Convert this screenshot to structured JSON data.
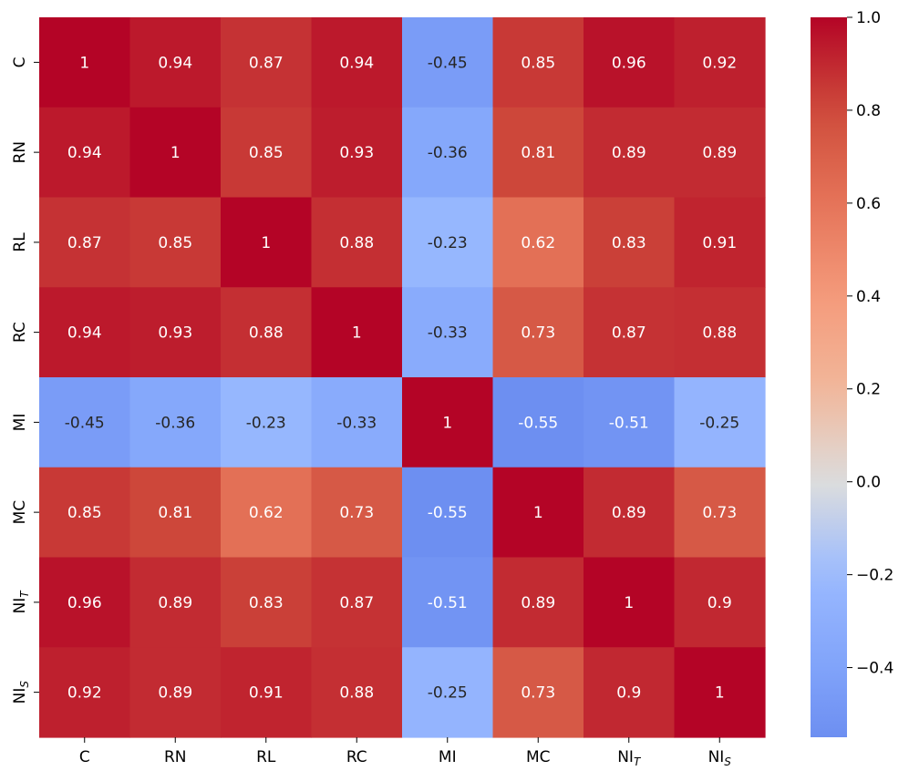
{
  "chart_data": {
    "type": "heatmap",
    "title": "",
    "xlabel": "",
    "ylabel": "",
    "row_labels": [
      {
        "base": "C",
        "sub": ""
      },
      {
        "base": "RN",
        "sub": ""
      },
      {
        "base": "RL",
        "sub": ""
      },
      {
        "base": "RC",
        "sub": ""
      },
      {
        "base": "MI",
        "sub": ""
      },
      {
        "base": "MC",
        "sub": ""
      },
      {
        "base": "NI",
        "sub": "T"
      },
      {
        "base": "NI",
        "sub": "S"
      }
    ],
    "col_labels": [
      {
        "base": "C",
        "sub": ""
      },
      {
        "base": "RN",
        "sub": ""
      },
      {
        "base": "RL",
        "sub": ""
      },
      {
        "base": "RC",
        "sub": ""
      },
      {
        "base": "MI",
        "sub": ""
      },
      {
        "base": "MC",
        "sub": ""
      },
      {
        "base": "NI",
        "sub": "T"
      },
      {
        "base": "NI",
        "sub": "S"
      }
    ],
    "values": [
      [
        1,
        0.94,
        0.87,
        0.94,
        -0.45,
        0.85,
        0.96,
        0.92
      ],
      [
        0.94,
        1,
        0.85,
        0.93,
        -0.36,
        0.81,
        0.89,
        0.89
      ],
      [
        0.87,
        0.85,
        1,
        0.88,
        -0.23,
        0.62,
        0.83,
        0.91
      ],
      [
        0.94,
        0.93,
        0.88,
        1,
        -0.33,
        0.73,
        0.87,
        0.88
      ],
      [
        -0.45,
        -0.36,
        -0.23,
        -0.33,
        1,
        -0.55,
        -0.51,
        -0.25
      ],
      [
        0.85,
        0.81,
        0.62,
        0.73,
        -0.55,
        1,
        0.89,
        0.73
      ],
      [
        0.96,
        0.89,
        0.83,
        0.87,
        -0.51,
        0.89,
        1,
        0.9
      ],
      [
        0.92,
        0.89,
        0.91,
        0.88,
        -0.25,
        0.73,
        0.9,
        1
      ]
    ],
    "cell_labels": [
      [
        "1",
        "0.94",
        "0.87",
        "0.94",
        "-0.45",
        "0.85",
        "0.96",
        "0.92"
      ],
      [
        "0.94",
        "1",
        "0.85",
        "0.93",
        "-0.36",
        "0.81",
        "0.89",
        "0.89"
      ],
      [
        "0.87",
        "0.85",
        "1",
        "0.88",
        "-0.23",
        "0.62",
        "0.83",
        "0.91"
      ],
      [
        "0.94",
        "0.93",
        "0.88",
        "1",
        "-0.33",
        "0.73",
        "0.87",
        "0.88"
      ],
      [
        "-0.45",
        "-0.36",
        "-0.23",
        "-0.33",
        "1",
        "-0.55",
        "-0.51",
        "-0.25"
      ],
      [
        "0.85",
        "0.81",
        "0.62",
        "0.73",
        "-0.55",
        "1",
        "0.89",
        "0.73"
      ],
      [
        "0.96",
        "0.89",
        "0.83",
        "0.87",
        "-0.51",
        "0.89",
        "1",
        "0.9"
      ],
      [
        "0.92",
        "0.89",
        "0.91",
        "0.88",
        "-0.25",
        "0.73",
        "0.9",
        "1"
      ]
    ],
    "colormap": "coolwarm",
    "vmin": -0.55,
    "vmax": 1.0,
    "colorbar": {
      "range": [
        -0.55,
        1.0
      ],
      "ticks": [
        1.0,
        0.8,
        0.6,
        0.4,
        0.2,
        0.0,
        -0.2,
        -0.4
      ],
      "tick_labels": [
        "1.0",
        "0.8",
        "0.6",
        "0.4",
        "0.2",
        "0.0",
        "−0.2",
        "−0.4"
      ]
    }
  }
}
